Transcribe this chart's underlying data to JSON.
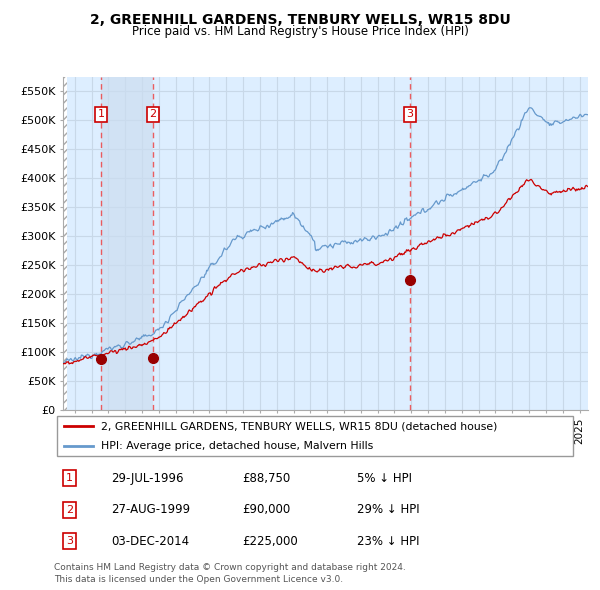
{
  "title1": "2, GREENHILL GARDENS, TENBURY WELLS, WR15 8DU",
  "title2": "Price paid vs. HM Land Registry's House Price Index (HPI)",
  "ylabel_ticks": [
    "£0",
    "£50K",
    "£100K",
    "£150K",
    "£200K",
    "£250K",
    "£300K",
    "£350K",
    "£400K",
    "£450K",
    "£500K",
    "£550K"
  ],
  "ytick_vals": [
    0,
    50000,
    100000,
    150000,
    200000,
    250000,
    300000,
    350000,
    400000,
    450000,
    500000,
    550000
  ],
  "xmin": 1994.3,
  "xmax": 2025.5,
  "ymin": 0,
  "ymax": 575000,
  "sale_dates": [
    1996.57,
    1999.65,
    2014.92
  ],
  "sale_prices": [
    88750,
    90000,
    225000
  ],
  "sale_labels": [
    "1",
    "2",
    "3"
  ],
  "legend_red": "2, GREENHILL GARDENS, TENBURY WELLS, WR15 8DU (detached house)",
  "legend_blue": "HPI: Average price, detached house, Malvern Hills",
  "table_rows": [
    [
      "1",
      "29-JUL-1996",
      "£88,750",
      "5% ↓ HPI"
    ],
    [
      "2",
      "27-AUG-1999",
      "£90,000",
      "29% ↓ HPI"
    ],
    [
      "3",
      "03-DEC-2014",
      "£225,000",
      "23% ↓ HPI"
    ]
  ],
  "footnote1": "Contains HM Land Registry data © Crown copyright and database right 2024.",
  "footnote2": "This data is licensed under the Open Government Licence v3.0.",
  "hatch_color": "#aaaaaa",
  "grid_color": "#c8d8e8",
  "bg_plot_color": "#ddeeff",
  "shade_between_color": "#ccddf0",
  "red_line_color": "#cc0000",
  "blue_line_color": "#6699cc",
  "dashed_vline_color": "#ee4444",
  "dot_color": "#990000",
  "sale_box_color": "#cc0000",
  "hatch_left_end": 1994.55
}
